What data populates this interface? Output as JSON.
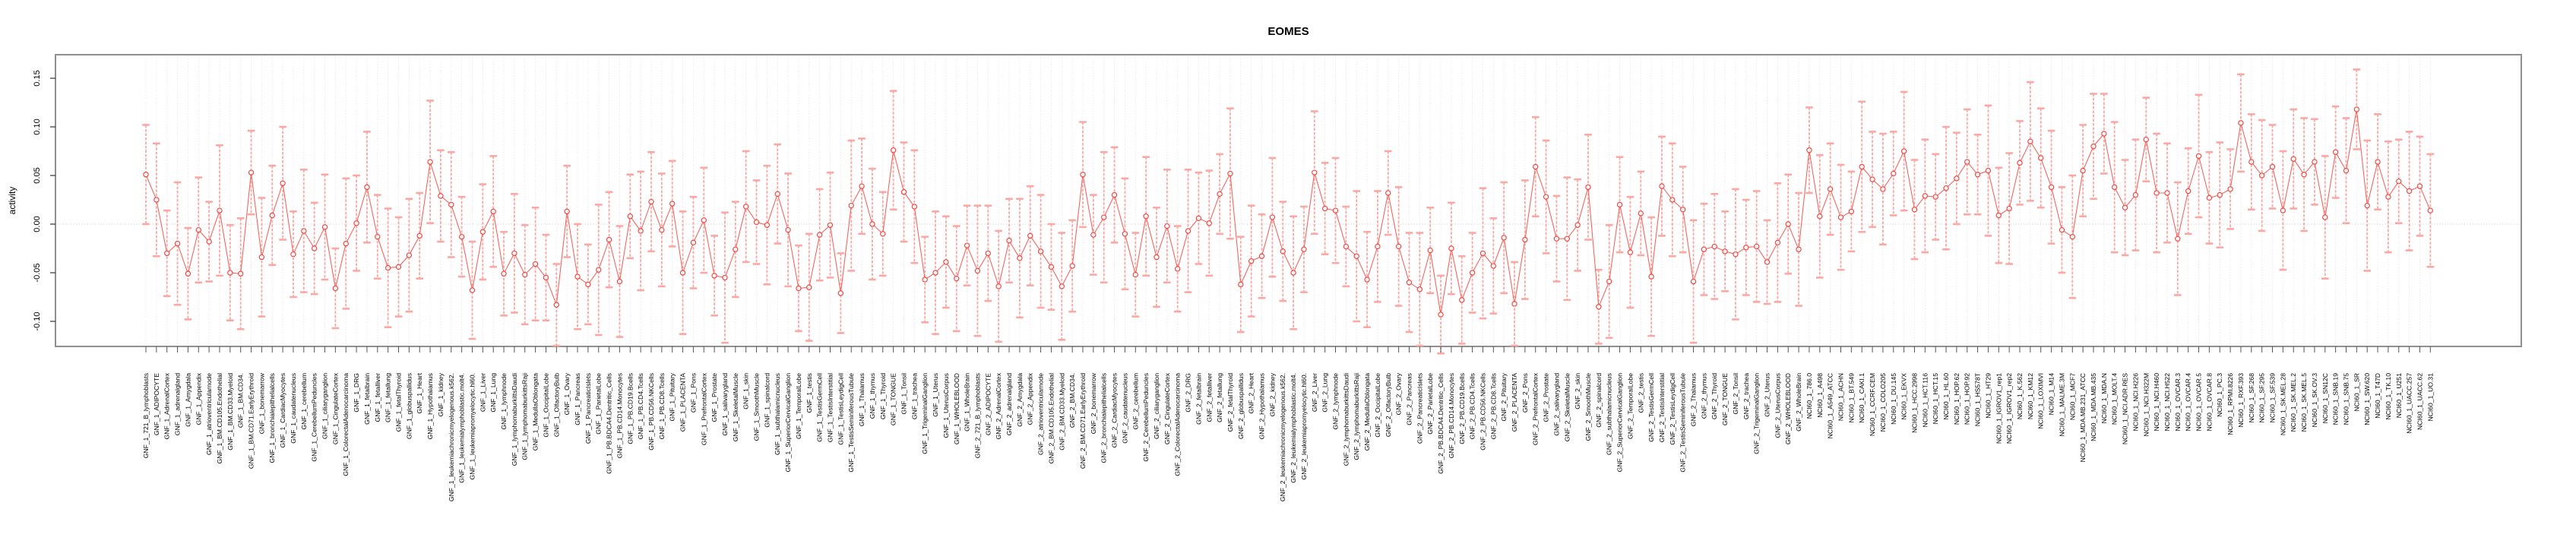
{
  "window": {
    "title": "EOMES"
  },
  "chart_data": {
    "type": "scatter",
    "title": "EOMES",
    "xlabel": "",
    "ylabel": "activity",
    "legend": "none",
    "grid": "vertical dotted gridline per category; horizontal dotted line at 0",
    "ylim": [
      -0.126,
      0.174
    ],
    "y_ticks": [
      {
        "value": 0.15,
        "label": "0.15"
      },
      {
        "value": 0.1,
        "label": "0.10"
      },
      {
        "value": 0.05,
        "label": "0.05"
      },
      {
        "value": 0.0,
        "label": "0.00"
      },
      {
        "value": -0.05,
        "label": "-0.05"
      },
      {
        "value": -0.1,
        "label": "-0.10"
      }
    ],
    "colors": {
      "point": "#ee4a45",
      "line": "#f26660",
      "error_bar": "#f9a8a3",
      "grid": "#dedede",
      "zero_line": "#c9c9c9",
      "box": "#8f8f8f",
      "text": "#000000"
    },
    "categories": [
      "GNF_1_721_B_lymphoblasts",
      "GNF_1_ADIPOCYTE",
      "GNF_1_AdrenalCortex",
      "GNF_1_adrenalgland",
      "GNF_1_Amygdala",
      "GNF_1_Appendix",
      "GNF_1_atrioventricularnode",
      "GNF_1_BM.CD105.Endothelial",
      "GNF_1_BM.CD33.Myeloid",
      "GNF_1_BM.CD34.",
      "GNF_1_BM.CD71.EarlyErythroid",
      "GNF_1_bonemarrow",
      "GNF_1_bronchialepithelialcells",
      "GNF_1_CardiacMyocytes",
      "GNF_1_caudatenucleus",
      "GNF_1_cerebellum",
      "GNF_1_CerebellumPeduncles",
      "GNF_1_ciliaryganglion",
      "GNF_1_CingulateCortex",
      "GNF_1_ColorectalAdenocarcinoma",
      "GNF_1_DRG",
      "GNF_1_fetalbrain",
      "GNF_1_fetalliver",
      "GNF_1_fetallung",
      "GNF_1_fetalThyroid",
      "GNF_1_globuspallidus",
      "GNF_1_Heart",
      "GNF_1_Hypothalamus",
      "GNF_1_kidney",
      "GNF_1_leukemiachronicmyelogenous.k562.",
      "GNF_1_leukemialymphoblastic.molt4.",
      "GNF_1_leukemiapromyelocytic.hl60.",
      "GNF_1_Liver",
      "GNF_1_Lung",
      "GNF_1_lymphnode",
      "GNF_1_lymphomaburkittsDaudi",
      "GNF_1_lymphomaburkittsRaji",
      "GNF_1_MedullaOblongata",
      "GNF_1_OccipitalLobe",
      "GNF_1_OlfactoryBulb",
      "GNF_1_Ovary",
      "GNF_1_Pancreas",
      "GNF_1_PancreaticIslets",
      "GNF_1_ParietalLobe",
      "GNF_1_PB.BDCA4.Dentritic_Cells",
      "GNF_1_PB.CD14.Monocytes",
      "GNF_1_PB.CD19.Bcells",
      "GNF_1_PB.CD4.Tcells",
      "GNF_1_PB.CD56.NKCells",
      "GNF_1_PB.CD8.Tcells",
      "GNF_1_Pituitary",
      "GNF_1_PLACENTA",
      "GNF_1_Pons",
      "GNF_1_PrefrontalCortex",
      "GNF_1_Prostate",
      "GNF_1_salivarygland",
      "GNF_1_SkeletalMuscle",
      "GNF_1_skin",
      "GNF_1_SmoothMuscle",
      "GNF_1_spinalcord",
      "GNF_1_subthalamicnucleus",
      "GNF_1_SuperiorCervicalGanglion",
      "GNF_1_TemporalLobe",
      "GNF_1_testis",
      "GNF_1_TestisGermCell",
      "GNF_1_TestisInterstitial",
      "GNF_1_TestisLeydigCell",
      "GNF_1_TestisSeminiferousTubule",
      "GNF_1_Thalamus",
      "GNF_1_thymus",
      "GNF_1_Thyroid",
      "GNF_1_TONGUE",
      "GNF_1_Tonsil",
      "GNF_1_trachea",
      "GNF_1_TrigeminalGanglion",
      "GNF_1_Uterus",
      "GNF_1_UterusCorpus",
      "GNF_1_WHOLEBLOOD",
      "GNF_1_WholeBrain",
      "GNF_2_721_B_lymphoblasts",
      "GNF_2_ADIPOCYTE",
      "GNF_2_AdrenalCortex",
      "GNF_2_adrenalgland",
      "GNF_2_Amygdala",
      "GNF_2_Appendix",
      "GNF_2_atrioventricularnode",
      "GNF_2_BM.CD105.Endothelial",
      "GNF_2_BM.CD33.Myeloid",
      "GNF_2_BM.CD34.",
      "GNF_2_BM.CD71.EarlyErythroid",
      "GNF_2_bonemarrow",
      "GNF_2_bronchialepithelialcells",
      "GNF_2_CardiacMyocytes",
      "GNF_2_caudatenucleus",
      "GNF_2_cerebellum",
      "GNF_2_CerebellumPeduncles",
      "GNF_2_ciliaryganglion",
      "GNF_2_CingulateCortex",
      "GNF_2_ColorectalAdenocarcinoma",
      "GNF_2_DRG",
      "GNF_2_fetalbrain",
      "GNF_2_fetalliver",
      "GNF_2_fetallung",
      "GNF_2_fetalThyroid",
      "GNF_2_globuspallidus",
      "GNF_2_Heart",
      "GNF_2_Hypothalamus",
      "GNF_2_kidney",
      "GNF_2_leukemiachronicmyelogenous.k562.",
      "GNF_2_leukemialymphoblastic.molt4.",
      "GNF_2_leukemiapromyelocytic.hl60.",
      "GNF_2_Liver",
      "GNF_2_Lung",
      "GNF_2_lymphnode",
      "GNF_2_lymphomaburkittsDaudi",
      "GNF_2_lymphomaburkittsRaji",
      "GNF_2_MedullaOblongata",
      "GNF_2_OccipitalLobe",
      "GNF_2_OlfactoryBulb",
      "GNF_2_Ovary",
      "GNF_2_Pancreas",
      "GNF_2_PancreaticIslets",
      "GNF_2_ParietalLobe",
      "GNF_2_PB.BDCA4.Dentritic_Cells",
      "GNF_2_PB.CD14.Monocytes",
      "GNF_2_PB.CD19.Bcells",
      "GNF_2_PB.CD4.Tcells",
      "GNF_2_PB.CD56.NKCells",
      "GNF_2_PB.CD8.Tcells",
      "GNF_2_Pituitary",
      "GNF_2_PLACENTA",
      "GNF_2_Pons",
      "GNF_2_PrefrontalCortex",
      "GNF_2_Prostate",
      "GNF_2_salivarygland",
      "GNF_2_SkeletalMuscle",
      "GNF_2_skin",
      "GNF_2_SmoothMuscle",
      "GNF_2_spinalcord",
      "GNF_2_subthalamicnucleus",
      "GNF_2_SuperiorCervicalGanglion",
      "GNF_2_TemporalLobe",
      "GNF_2_testis",
      "GNF_2_TestisGermCell",
      "GNF_2_TestisInterstitial",
      "GNF_2_TestisLeydigCell",
      "GNF_2_TestisSeminiferousTubule",
      "GNF_2_Thalamus",
      "GNF_2_thymus",
      "GNF_2_Thyroid",
      "GNF_2_TONGUE",
      "GNF_2_Tonsil",
      "GNF_2_trachea",
      "GNF_2_TrigeminalGanglion",
      "GNF_2_Uterus",
      "GNF_2_UterusCorpus",
      "GNF_2_WHOLEBLOOD",
      "GNF_2_WholeBrain",
      "NCI60_1_786.0",
      "NCI60_1_A498",
      "NCI60_1_A549_ATCC",
      "NCI60_1_ACHN",
      "NCI60_1_BT.549",
      "NCI60_1_CAKI.1",
      "NCI60_1_CCRF.CEM",
      "NCI60_1_COLO205",
      "NCI60_1_DU.145",
      "NCI60_1_EKVX",
      "NCI60_1_HCC.2998",
      "NCI60_1_HCT.116",
      "NCI60_1_HCT.15",
      "NCI60_1_HL.60",
      "NCI60_1_HOP.62",
      "NCI60_1_HOP.92",
      "NCI60_1_HS578T",
      "NCI60_1_HT29",
      "NCI60_1_IGROV1_rep1",
      "NCI60_1_IGROV1_rep2",
      "NCI60_1_K.562",
      "NCI60_1_KM12",
      "NCI60_1_LOXIMVI",
      "NCI60_1_M14",
      "NCI60_1_MALME.3M",
      "NCI60_1_MCF7",
      "NCI60_1_MDA.MB.231_ATCC",
      "NCI60_1_MDA.MB.435",
      "NCI60_1_MDA.N",
      "NCI60_1_MOLT.4",
      "NCI60_1_NCI.ADR.RES",
      "NCI60_1_NCI.H226",
      "NCI60_1_NCI.H322M",
      "NCI60_1_NCI.H460",
      "NCI60_1_NCI.H522",
      "NCI60_1_OVCAR.3",
      "NCI60_1_OVCAR.4",
      "NCI60_1_OVCAR.5",
      "NCI60_1_OVCAR.8",
      "NCI60_1_PC.3",
      "NCI60_1_RPMI.8226",
      "NCI60_1_RXF.393",
      "NCI60_1_SF.268",
      "NCI60_1_SF.295",
      "NCI60_1_SF.539",
      "NCI60_1_SK.MEL.28",
      "NCI60_1_SK.MEL.2",
      "NCI60_1_SK.MEL.5",
      "NCI60_1_SK.OV.3",
      "NCI60_1_SN12C",
      "NCI60_1_SNB.19",
      "NCI60_1_SNB.75",
      "NCI60_1_SR",
      "NCI60_1_SW.620",
      "NCI60_1_T47D",
      "NCI60_1_TK.10",
      "NCI60_1_U251",
      "NCI60_1_UACC.257",
      "NCI60_1_UACC.62",
      "NCI60_1_UO.31"
    ],
    "values": [
      0.051,
      0.025,
      -0.03,
      -0.02,
      -0.051,
      -0.006,
      -0.018,
      0.014,
      -0.05,
      -0.051,
      0.053,
      -0.034,
      0.009,
      0.042,
      -0.031,
      -0.007,
      -0.025,
      -0.003,
      -0.066,
      -0.02,
      0.001,
      0.038,
      -0.013,
      -0.045,
      -0.044,
      -0.032,
      -0.012,
      0.064,
      0.029,
      0.02,
      -0.013,
      -0.068,
      -0.008,
      0.013,
      -0.051,
      -0.03,
      -0.052,
      -0.041,
      -0.055,
      -0.083,
      0.013,
      -0.054,
      -0.062,
      -0.047,
      -0.016,
      -0.059,
      0.008,
      -0.007,
      0.023,
      -0.006,
      0.021,
      -0.05,
      -0.019,
      0.004,
      -0.053,
      -0.055,
      -0.026,
      0.018,
      0.002,
      -0.001,
      0.031,
      -0.006,
      -0.066,
      -0.065,
      -0.011,
      -0.001,
      -0.071,
      0.019,
      0.039,
      0.0,
      -0.01,
      0.076,
      0.033,
      0.018,
      -0.057,
      -0.05,
      -0.039,
      -0.056,
      -0.022,
      -0.048,
      -0.03,
      -0.064,
      -0.017,
      -0.035,
      -0.012,
      -0.028,
      -0.044,
      -0.064,
      -0.043,
      0.051,
      -0.011,
      0.007,
      0.03,
      -0.01,
      -0.052,
      0.008,
      -0.034,
      -0.002,
      -0.046,
      -0.007,
      0.006,
      0.001,
      0.031,
      0.052,
      -0.062,
      -0.038,
      -0.033,
      0.007,
      -0.028,
      -0.05,
      -0.026,
      0.053,
      0.016,
      0.014,
      -0.023,
      -0.033,
      -0.057,
      -0.023,
      0.032,
      -0.023,
      -0.06,
      -0.067,
      -0.027,
      -0.093,
      -0.025,
      -0.078,
      -0.05,
      -0.03,
      -0.043,
      -0.014,
      -0.082,
      -0.016,
      0.059,
      0.028,
      -0.015,
      -0.015,
      -0.001,
      0.038,
      -0.085,
      -0.059,
      0.02,
      -0.029,
      0.011,
      -0.054,
      0.039,
      0.025,
      0.015,
      -0.059,
      -0.026,
      -0.023,
      -0.028,
      -0.031,
      -0.024,
      -0.023,
      -0.039,
      -0.019,
      0.0,
      -0.026,
      0.076,
      0.008,
      0.036,
      0.007,
      0.013,
      0.059,
      0.046,
      0.036,
      0.052,
      0.075,
      0.015,
      0.029,
      0.028,
      0.037,
      0.047,
      0.064,
      0.051,
      0.055,
      0.009,
      0.016,
      0.063,
      0.085,
      0.068,
      0.038,
      -0.006,
      -0.013,
      0.055,
      0.08,
      0.093,
      0.038,
      0.017,
      0.03,
      0.087,
      0.032,
      0.032,
      -0.015,
      0.034,
      0.07,
      0.027,
      0.03,
      0.036,
      0.104,
      0.064,
      0.05,
      0.059,
      0.014,
      0.067,
      0.051,
      0.064,
      0.007,
      0.074,
      0.055,
      0.118,
      0.019,
      0.064,
      0.028,
      0.044,
      0.034,
      0.039,
      0.014
    ],
    "errors": [
      0.051,
      0.058,
      0.044,
      0.063,
      0.047,
      0.054,
      0.041,
      0.067,
      0.049,
      0.057,
      0.043,
      0.061,
      0.051,
      0.058,
      0.044,
      0.063,
      0.047,
      0.054,
      0.041,
      0.067,
      0.049,
      0.057,
      0.043,
      0.061,
      0.051,
      0.058,
      0.044,
      0.063,
      0.047,
      0.054,
      0.041,
      0.05,
      0.049,
      0.057,
      0.043,
      0.061,
      0.051,
      0.058,
      0.044,
      0.042,
      0.047,
      0.054,
      0.041,
      0.067,
      0.049,
      0.057,
      0.043,
      0.061,
      0.051,
      0.058,
      0.044,
      0.063,
      0.047,
      0.054,
      0.041,
      0.067,
      0.049,
      0.057,
      0.043,
      0.061,
      0.051,
      0.058,
      0.044,
      0.055,
      0.047,
      0.054,
      0.041,
      0.067,
      0.049,
      0.057,
      0.043,
      0.061,
      0.051,
      0.058,
      0.044,
      0.063,
      0.047,
      0.054,
      0.041,
      0.067,
      0.049,
      0.057,
      0.043,
      0.061,
      0.051,
      0.058,
      0.044,
      0.055,
      0.047,
      0.054,
      0.041,
      0.067,
      0.049,
      0.057,
      0.043,
      0.061,
      0.051,
      0.058,
      0.044,
      0.063,
      0.047,
      0.054,
      0.041,
      0.067,
      0.049,
      0.057,
      0.043,
      0.061,
      0.051,
      0.058,
      0.044,
      0.063,
      0.047,
      0.054,
      0.041,
      0.067,
      0.049,
      0.057,
      0.043,
      0.061,
      0.051,
      0.058,
      0.044,
      0.04,
      0.047,
      0.045,
      0.041,
      0.067,
      0.049,
      0.057,
      0.043,
      0.061,
      0.051,
      0.058,
      0.044,
      0.063,
      0.047,
      0.054,
      0.038,
      0.058,
      0.049,
      0.057,
      0.043,
      0.061,
      0.051,
      0.058,
      0.044,
      0.063,
      0.047,
      0.054,
      0.041,
      0.067,
      0.049,
      0.057,
      0.043,
      0.061,
      0.051,
      0.058,
      0.044,
      0.063,
      0.047,
      0.054,
      0.041,
      0.067,
      0.049,
      0.057,
      0.043,
      0.061,
      0.051,
      0.058,
      0.044,
      0.063,
      0.047,
      0.054,
      0.041,
      0.067,
      0.049,
      0.057,
      0.043,
      0.061,
      0.051,
      0.058,
      0.044,
      0.063,
      0.047,
      0.054,
      0.041,
      0.067,
      0.049,
      0.057,
      0.043,
      0.061,
      0.051,
      0.058,
      0.044,
      0.063,
      0.047,
      0.054,
      0.041,
      0.05,
      0.049,
      0.057,
      0.043,
      0.061,
      0.051,
      0.058,
      0.044,
      0.063,
      0.047,
      0.054,
      0.041,
      0.067,
      0.049,
      0.057,
      0.043,
      0.061,
      0.051,
      0.058
    ]
  }
}
